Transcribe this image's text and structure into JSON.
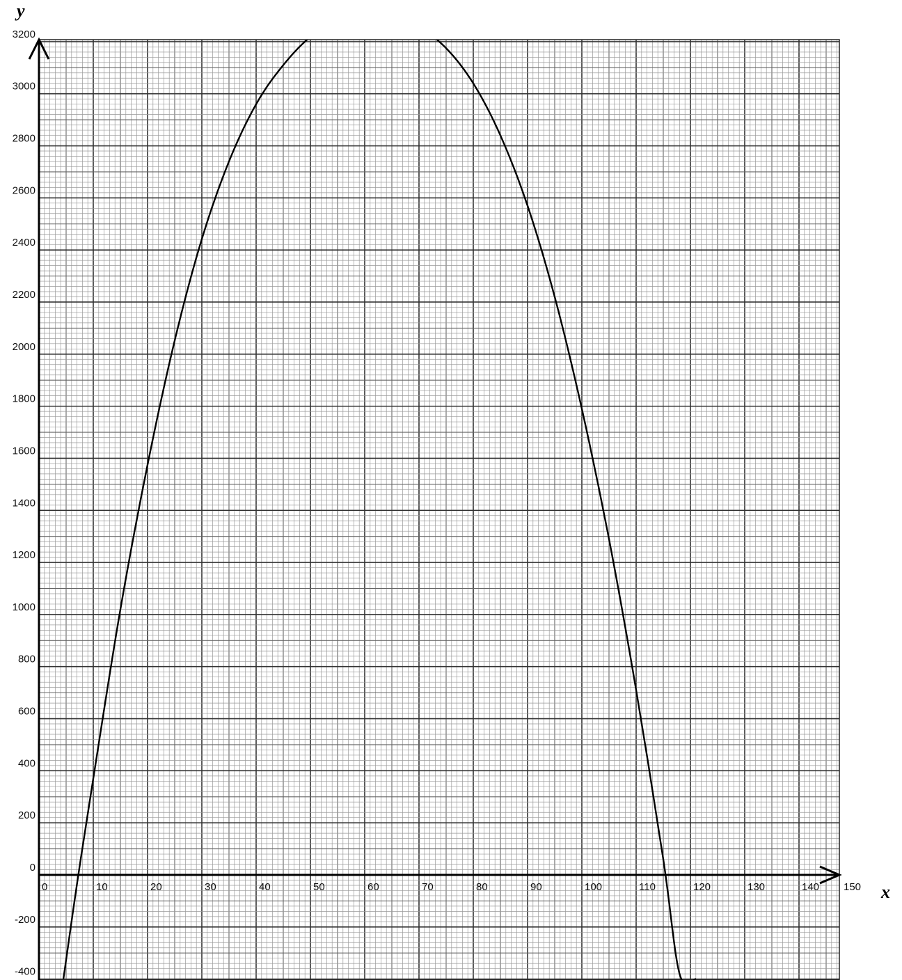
{
  "chart_data": {
    "type": "line",
    "xlabel": "x",
    "ylabel": "y",
    "xlim": [
      0,
      147.5
    ],
    "ylim": [
      -400,
      3200
    ],
    "x_ticks": [
      0,
      10,
      20,
      30,
      40,
      50,
      60,
      70,
      80,
      90,
      100,
      110,
      120,
      130,
      140,
      150
    ],
    "y_ticks": [
      -400,
      -200,
      0,
      200,
      400,
      600,
      800,
      1000,
      1200,
      1400,
      1600,
      1800,
      2000,
      2200,
      2400,
      2600,
      2800,
      3000,
      3200
    ],
    "grid": true,
    "grid_minor_x": 1,
    "grid_minor_y": 20,
    "series": [
      {
        "x": [
          4.5,
          7,
          10,
          15,
          20,
          25,
          30,
          35,
          40,
          45,
          50,
          55,
          60,
          63,
          65,
          70,
          75,
          80,
          85,
          90,
          95,
          100,
          105,
          110,
          115,
          118,
          121
        ],
        "y": [
          -400,
          -35,
          370,
          1020,
          1575,
          2052,
          2442,
          2740,
          2960,
          3110,
          3218,
          3275,
          3300,
          3298,
          3294,
          3255,
          3175,
          3040,
          2840,
          2570,
          2220,
          1790,
          1290,
          710,
          60,
          -380,
          -400
        ],
        "color": "#000000"
      }
    ]
  }
}
